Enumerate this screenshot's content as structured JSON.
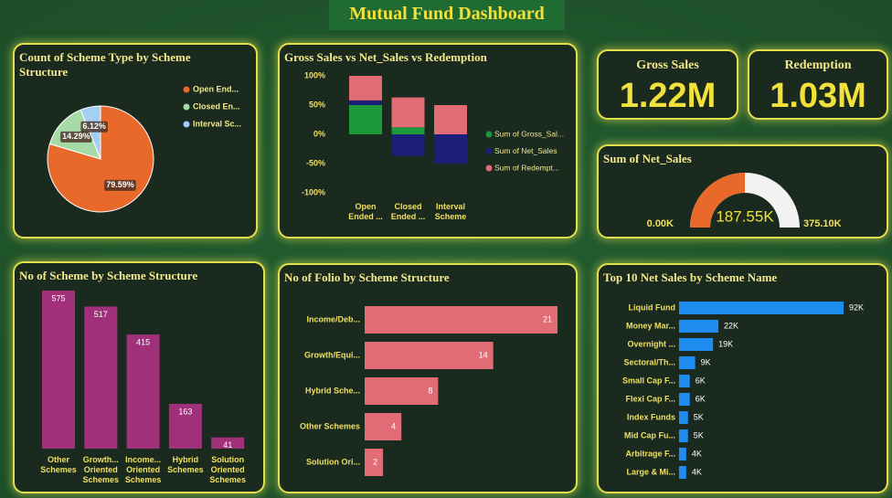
{
  "title": "Mutual Fund Dashboard",
  "cards": [
    {
      "label": "Gross Sales",
      "value": "1.22M"
    },
    {
      "label": "Redemption",
      "value": "1.03M"
    }
  ],
  "chart_data": [
    {
      "type": "pie",
      "title": "Count of Scheme Type by Scheme Structure",
      "categories": [
        "Open End...",
        "Closed En...",
        "Interval Sc..."
      ],
      "values": [
        79.59,
        14.29,
        6.12
      ],
      "value_labels": [
        "79.59%",
        "14.29%",
        "6.12%"
      ],
      "colors": [
        "#e8692a",
        "#a6dba8",
        "#a3cff5"
      ]
    },
    {
      "type": "stacked_bar",
      "title": "Gross Sales vs Net_Sales vs Redemption",
      "categories": [
        "Open Ended ...",
        "Closed Ended ...",
        "Interval Scheme"
      ],
      "series": [
        {
          "name": "Sum of Gross_Sal...",
          "color": "#1c9a3a",
          "values": [
            50,
            12,
            0
          ]
        },
        {
          "name": "Sum of Net_Sales",
          "color": "#1b1f78",
          "values": [
            8,
            -37,
            -50
          ]
        },
        {
          "name": "Sum of Redempt...",
          "color": "#e06c75",
          "values": [
            42,
            51,
            50
          ]
        }
      ],
      "ylim": [
        -100,
        100
      ],
      "yticks": [
        {
          "value": 100,
          "label": "100%"
        },
        {
          "value": 50,
          "label": "50%"
        },
        {
          "value": 0,
          "label": "0%"
        },
        {
          "value": -50,
          "label": "-50%"
        },
        {
          "value": -100,
          "label": "-100%"
        }
      ]
    },
    {
      "type": "bar",
      "title": "No of Scheme by Scheme Structure",
      "categories": [
        "Other Schemes",
        "Growth... Oriented Schemes",
        "Income... Oriented Schemes",
        "Hybrid Schemes",
        "Solution Oriented Schemes"
      ],
      "values": [
        575,
        517,
        415,
        163,
        41
      ],
      "color": "#a0307a"
    },
    {
      "type": "hbar",
      "title": "No of Folio by Scheme Structure",
      "categories": [
        "Income/Deb...",
        "Growth/Equi...",
        "Hybrid Sche...",
        "Other Schemes",
        "Solution Ori..."
      ],
      "values": [
        21,
        14,
        8,
        4,
        2
      ],
      "color": "#e06c75"
    },
    {
      "type": "hbar",
      "title": "Top 10 Net Sales by Scheme Name",
      "categories": [
        "Liquid Fund",
        "Money Mar...",
        "Overnight ...",
        "Sectoral/Th...",
        "Small Cap F...",
        "Flexi Cap F...",
        "Index Funds",
        "Mid Cap Fu...",
        "Arbitrage F...",
        "Large & Mi..."
      ],
      "values": [
        92000,
        22000,
        19000,
        9000,
        6000,
        6000,
        5000,
        5000,
        4000,
        4000
      ],
      "value_labels": [
        "92K",
        "22K",
        "19K",
        "9K",
        "6K",
        "6K",
        "5K",
        "5K",
        "4K",
        "4K"
      ],
      "color": "#1e8cf0"
    },
    {
      "type": "gauge",
      "title": "Sum of Net_Sales",
      "value": 187550,
      "value_label": "187.55K",
      "min": {
        "value": 0,
        "label": "0.00K"
      },
      "max": {
        "value": 375100,
        "label": "375.10K"
      },
      "colors": [
        "#e8692a",
        "#f2f2f2"
      ]
    }
  ]
}
